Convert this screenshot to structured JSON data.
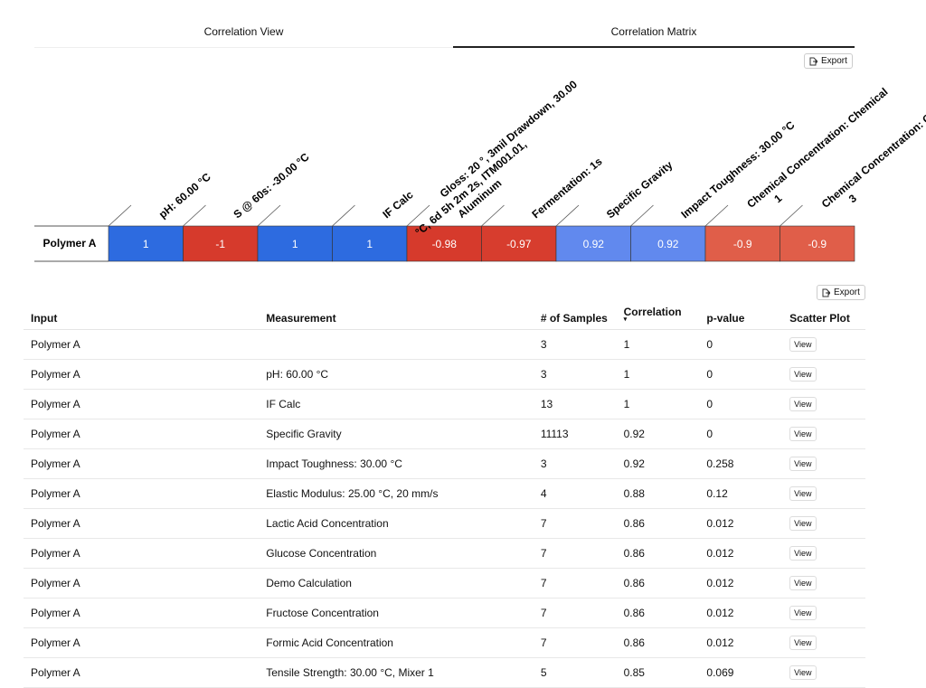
{
  "tabs": [
    "Correlation View",
    "Correlation Matrix"
  ],
  "export_label": "Export",
  "matrix": {
    "row_label": "Polymer A",
    "columns": [
      [
        "pH: 60.00 °C"
      ],
      [
        "S @ 60s: -30.00 °C"
      ],
      null,
      [
        "IF Calc"
      ],
      [
        "Gloss: 20 °, 3mil Drawdown, 30.00",
        "°C, 6d 5h 2m 2s, ITM001.01,",
        "Aluminum"
      ],
      [
        "Fermentation: 1s"
      ],
      [
        "Specific Gravity"
      ],
      [
        "Impact Toughness: 30.00 °C"
      ],
      [
        "Chemical Concentration: Chemical",
        "1"
      ],
      [
        "Chemical Concentration: Chemical",
        "3"
      ]
    ],
    "values": [
      "1",
      "-1",
      "1",
      "1",
      "-0.98",
      "-0.97",
      "0.92",
      "0.92",
      "-0.9",
      "-0.9"
    ],
    "colors": [
      "#2d6be0",
      "#d63a2c",
      "#2d6be0",
      "#2d6be0",
      "#d63a2c",
      "#d73d2e",
      "#6189ee",
      "#6189ee",
      "#e05e49",
      "#e05e49"
    ]
  },
  "table": {
    "headers": [
      "Input",
      "Measurement",
      "# of Samples",
      "Correlation",
      "p-value",
      "Scatter Plot"
    ],
    "view_label": "View",
    "rows": [
      [
        "Polymer A",
        null,
        "3",
        "1",
        "0"
      ],
      [
        "Polymer A",
        "pH: 60.00 °C",
        "3",
        "1",
        "0"
      ],
      [
        "Polymer A",
        "IF Calc",
        "13",
        "1",
        "0"
      ],
      [
        "Polymer A",
        "Specific Gravity",
        "11113",
        "0.92",
        "0"
      ],
      [
        "Polymer A",
        "Impact Toughness: 30.00 °C",
        "3",
        "0.92",
        "0.258"
      ],
      [
        "Polymer A",
        "Elastic Modulus: 25.00 °C, 20 mm/s",
        "4",
        "0.88",
        "0.12"
      ],
      [
        "Polymer A",
        "Lactic Acid Concentration",
        "7",
        "0.86",
        "0.012"
      ],
      [
        "Polymer A",
        "Glucose Concentration",
        "7",
        "0.86",
        "0.012"
      ],
      [
        "Polymer A",
        "Demo Calculation",
        "7",
        "0.86",
        "0.012"
      ],
      [
        "Polymer A",
        "Fructose Concentration",
        "7",
        "0.86",
        "0.012"
      ],
      [
        "Polymer A",
        "Formic Acid Concentration",
        "7",
        "0.86",
        "0.012"
      ],
      [
        "Polymer A",
        "Tensile Strength: 30.00 °C, Mixer 1",
        "5",
        "0.85",
        "0.069"
      ]
    ]
  }
}
